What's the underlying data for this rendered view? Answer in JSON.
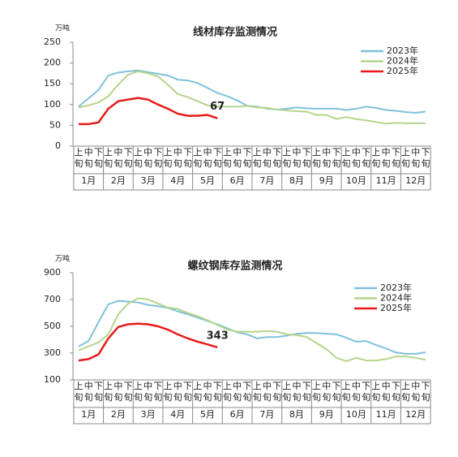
{
  "charts": [
    {
      "chart_data": {
        "type": "line",
        "title": "线材库存监测情况",
        "y_unit": "万吨",
        "categories": [
          "上旬",
          "中旬",
          "下旬",
          "上旬",
          "中旬",
          "下旬",
          "上旬",
          "中旬",
          "下旬",
          "上旬",
          "中旬",
          "下旬",
          "上旬",
          "中旬",
          "下旬",
          "上旬",
          "中旬",
          "下旬",
          "上旬",
          "中旬",
          "下旬",
          "上旬",
          "中旬",
          "下旬",
          "上旬",
          "中旬",
          "下旬",
          "上旬",
          "中旬",
          "下旬",
          "上旬",
          "中旬",
          "下旬",
          "上旬",
          "中旬",
          "下旬"
        ],
        "months": [
          "1月",
          "2月",
          "3月",
          "4月",
          "5月",
          "6月",
          "7月",
          "8月",
          "9月",
          "10月",
          "11月",
          "12月"
        ],
        "ylim": [
          0,
          250
        ],
        "yticks": [
          0,
          50,
          100,
          150,
          200,
          250
        ],
        "series": [
          {
            "name": "2023年",
            "color": "#7ec1dc",
            "values": [
              95,
              115,
              135,
              170,
              177,
              180,
              182,
              178,
              174,
              170,
              160,
              158,
              152,
              140,
              128,
              120,
              110,
              97,
              95,
              90,
              88,
              90,
              93,
              91,
              90,
              90,
              90,
              87,
              90,
              95,
              92,
              87,
              85,
              82,
              80,
              83
            ]
          },
          {
            "name": "2024年",
            "color": "#b5d48a",
            "values": [
              93,
              98,
              105,
              120,
              148,
              172,
              180,
              175,
              168,
              148,
              125,
              118,
              108,
              98,
              95,
              95,
              95,
              97,
              93,
              92,
              88,
              86,
              84,
              83,
              75,
              75,
              65,
              70,
              65,
              62,
              58,
              54,
              56,
              55,
              55,
              55
            ]
          },
          {
            "name": "2025年",
            "color": "#e8191a",
            "values": [
              53,
              53,
              57,
              90,
              108,
              112,
              116,
              112,
              100,
              90,
              78,
              73,
              73,
              75,
              67,
              null,
              null,
              null,
              null,
              null,
              null,
              null,
              null,
              null,
              null,
              null,
              null,
              null,
              null,
              null,
              null,
              null,
              null,
              null,
              null,
              null
            ]
          }
        ]
      }
    },
    {
      "chart_data": {
        "type": "line",
        "title": "螺纹钢库存监测情况",
        "y_unit": "万吨",
        "categories": [
          "上旬",
          "中旬",
          "下旬",
          "上旬",
          "中旬",
          "下旬",
          "上旬",
          "中旬",
          "下旬",
          "上旬",
          "中旬",
          "下旬",
          "上旬",
          "中旬",
          "下旬",
          "上旬",
          "中旬",
          "下旬",
          "上旬",
          "中旬",
          "下旬",
          "上旬",
          "中旬",
          "下旬",
          "上旬",
          "中旬",
          "下旬",
          "上旬",
          "中旬",
          "下旬",
          "上旬",
          "中旬",
          "下旬",
          "上旬",
          "中旬",
          "下旬"
        ],
        "months": [
          "1月",
          "2月",
          "3月",
          "4月",
          "5月",
          "6月",
          "7月",
          "8月",
          "9月",
          "10月",
          "11月",
          "12月"
        ],
        "ylim": [
          100,
          900
        ],
        "yticks": [
          100,
          300,
          500,
          700,
          900
        ],
        "series": [
          {
            "name": "2023年",
            "color": "#7ec1dc",
            "values": [
              350,
              390,
              530,
              665,
              690,
              685,
              678,
              660,
              650,
              638,
              612,
              590,
              565,
              540,
              515,
              485,
              455,
              440,
              410,
              420,
              420,
              430,
              445,
              450,
              450,
              445,
              440,
              415,
              385,
              390,
              360,
              335,
              305,
              295,
              295,
              305
            ]
          },
          {
            "name": "2024年",
            "color": "#b5d48a",
            "values": [
              320,
              350,
              380,
              440,
              590,
              670,
              710,
              700,
              670,
              640,
              630,
              600,
              575,
              545,
              510,
              475,
              460,
              460,
              460,
              465,
              460,
              440,
              435,
              420,
              375,
              330,
              265,
              240,
              265,
              245,
              245,
              255,
              275,
              275,
              265,
              250
            ]
          },
          {
            "name": "2025年",
            "color": "#e8191a",
            "values": [
              245,
              255,
              290,
              410,
              495,
              515,
              520,
              515,
              500,
              475,
              440,
              410,
              385,
              365,
              343,
              null,
              null,
              null,
              null,
              null,
              null,
              null,
              null,
              null,
              null,
              null,
              null,
              null,
              null,
              null,
              null,
              null,
              null,
              null,
              null,
              null
            ]
          }
        ]
      }
    }
  ]
}
